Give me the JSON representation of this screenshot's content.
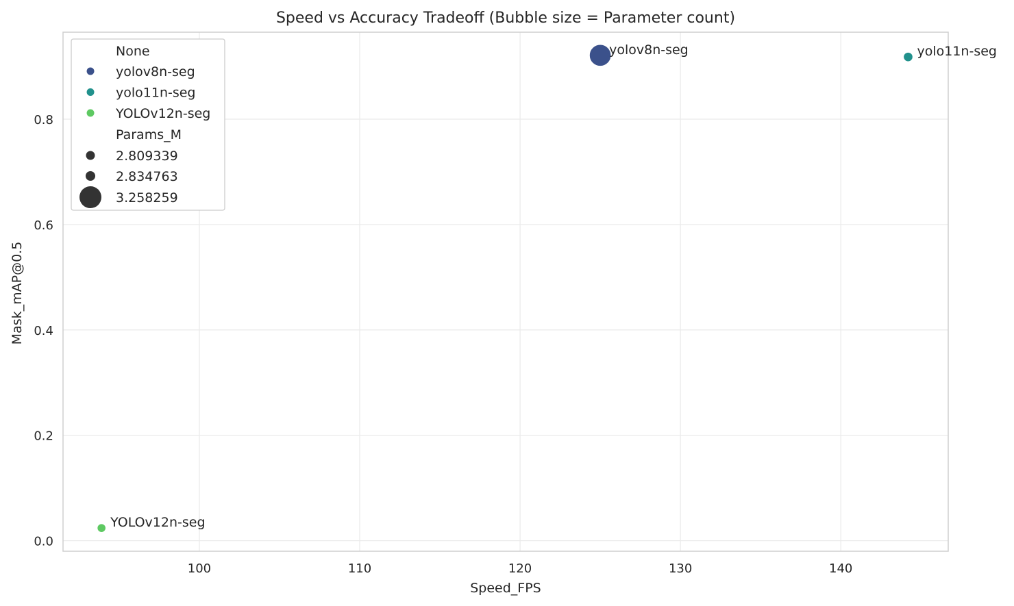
{
  "chart_data": {
    "type": "scatter",
    "title": "Speed vs Accuracy Tradeoff (Bubble size = Parameter count)",
    "xlabel": "Speed_FPS",
    "ylabel": "Mask_mAP@0.5",
    "xlim": [
      91.5,
      146.7
    ],
    "ylim": [
      -0.02,
      0.965
    ],
    "xticks": [
      100,
      110,
      120,
      130,
      140
    ],
    "yticks": [
      0.0,
      0.2,
      0.4,
      0.6,
      0.8
    ],
    "grid": true,
    "legend_position": "top-left",
    "points": [
      {
        "label": "yolov8n-seg",
        "x": 125.0,
        "y": 0.921,
        "params_m": 3.258259,
        "color": "#3b518b"
      },
      {
        "label": "yolo11n-seg",
        "x": 144.2,
        "y": 0.918,
        "params_m": 2.834763,
        "color": "#21918c"
      },
      {
        "label": "YOLOv12n-seg",
        "x": 93.9,
        "y": 0.024,
        "params_m": 2.809339,
        "color": "#5ec962"
      }
    ],
    "legend": {
      "hue_title": "None",
      "hue_entries": [
        {
          "label": "yolov8n-seg",
          "color": "#3b518b"
        },
        {
          "label": "yolo11n-seg",
          "color": "#21918c"
        },
        {
          "label": "YOLOv12n-seg",
          "color": "#5ec962"
        }
      ],
      "size_title": "Params_M",
      "size_entries": [
        "2.809339",
        "2.834763",
        "3.258259"
      ]
    }
  }
}
